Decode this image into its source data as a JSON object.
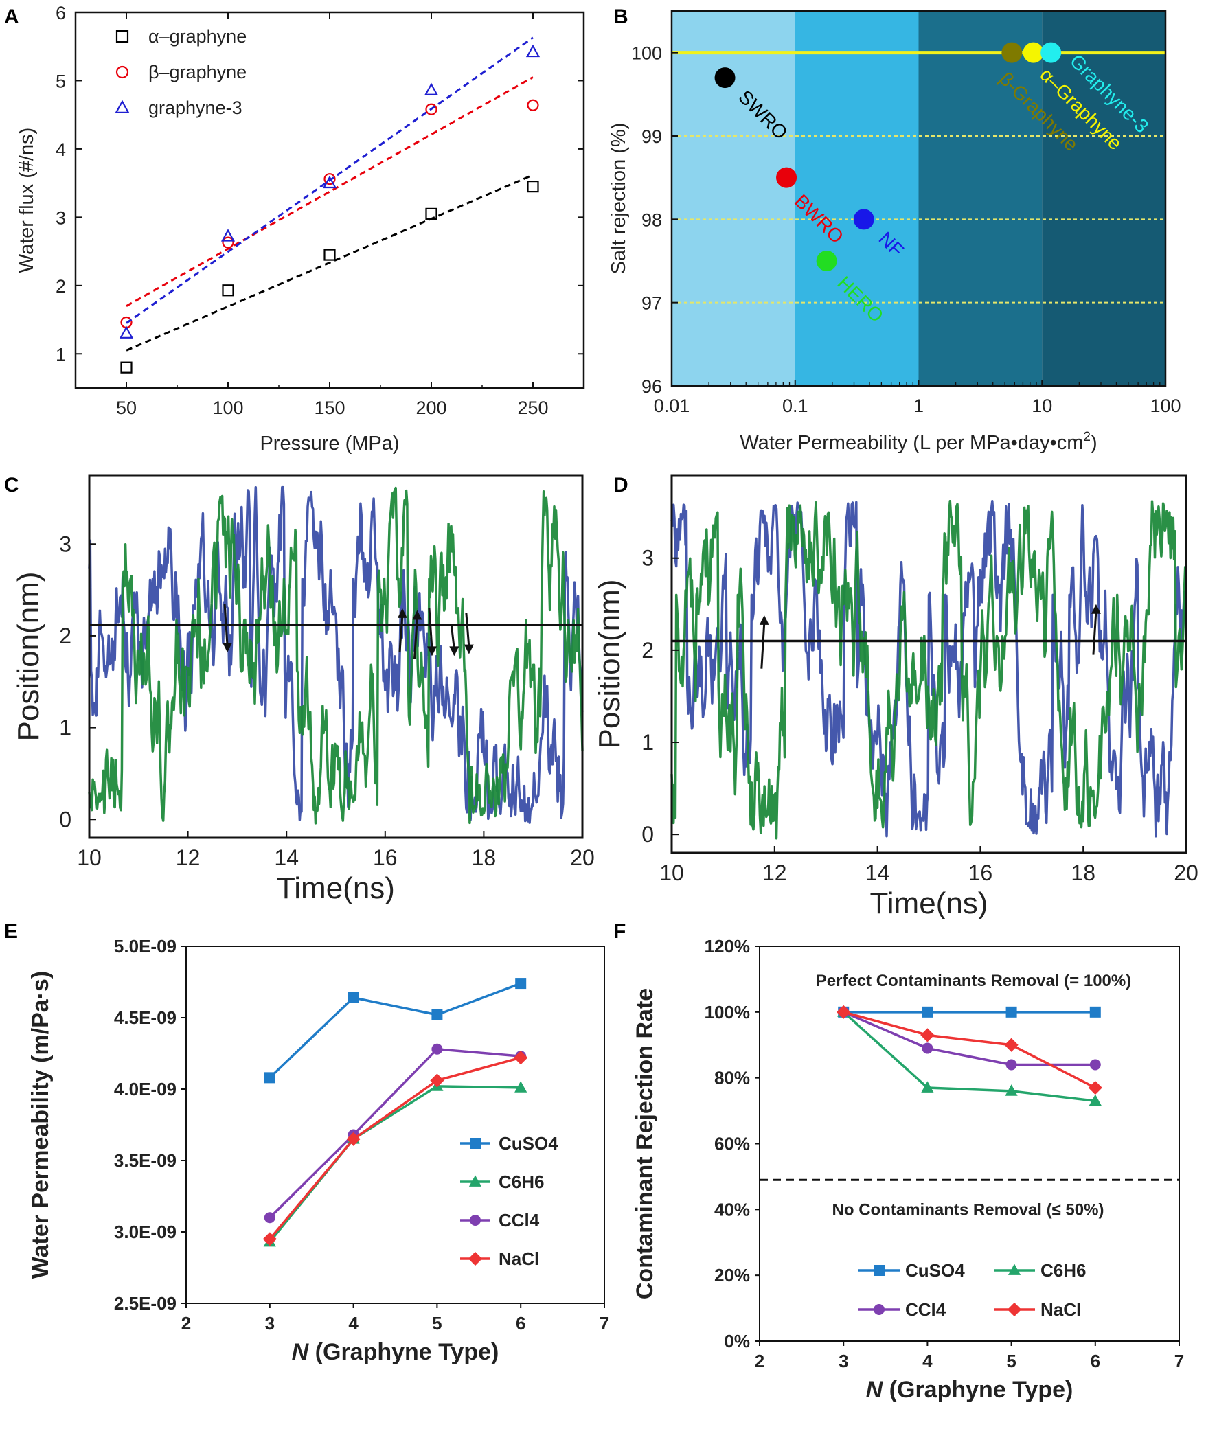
{
  "chart_data": [
    {
      "panel": "A",
      "type": "scatter",
      "xlabel": "Pressure (MPa)",
      "ylabel": "Water flux (#/ns)",
      "xlim": [
        25,
        275
      ],
      "ylim": [
        0.5,
        6
      ],
      "xticks": [
        50,
        100,
        150,
        200,
        250
      ],
      "yticks": [
        1,
        2,
        3,
        4,
        5,
        6
      ],
      "series": [
        {
          "name": "α–graphyne",
          "marker": "square",
          "color": "#000000",
          "x": [
            50,
            100,
            150,
            200,
            250
          ],
          "y": [
            0.8,
            1.93,
            2.45,
            3.05,
            3.45
          ],
          "fit": [
            1.05,
            3.62
          ]
        },
        {
          "name": "β–graphyne",
          "marker": "circle",
          "color": "#e8000b",
          "x": [
            50,
            100,
            150,
            200,
            250
          ],
          "y": [
            1.46,
            2.63,
            3.56,
            4.58,
            4.64
          ],
          "fit": [
            1.7,
            5.05
          ]
        },
        {
          "name": "graphyne-3",
          "marker": "triangle",
          "color": "#1f1fd1",
          "x": [
            50,
            100,
            150,
            200,
            250
          ],
          "y": [
            1.3,
            2.72,
            3.5,
            4.86,
            5.42
          ],
          "fit": [
            1.45,
            5.63
          ]
        }
      ]
    },
    {
      "panel": "B",
      "type": "scatter",
      "xscale": "log",
      "xlabel": "Water Permeability (L per MPa•day•cm",
      "xlabel_sup": "2",
      "xlabel_end": ")",
      "ylabel": "Salt rejection (%)",
      "xlim": [
        0.01,
        100
      ],
      "ylim": [
        96,
        100.5
      ],
      "xticks": [
        0.01,
        0.1,
        1,
        10,
        100
      ],
      "xtick_labels": [
        "0.01",
        "0.1",
        "1",
        "10",
        "100"
      ],
      "yticks": [
        96,
        97,
        98,
        99,
        100
      ],
      "points": [
        {
          "name": "SWRO",
          "x": 0.027,
          "y": 99.7,
          "color": "#000000"
        },
        {
          "name": "BWRO",
          "x": 0.085,
          "y": 98.5,
          "color": "#e8000b"
        },
        {
          "name": "NF",
          "x": 0.36,
          "y": 98.0,
          "color": "#1818e8"
        },
        {
          "name": "HERO",
          "x": 0.18,
          "y": 97.5,
          "color": "#22dd22"
        },
        {
          "name": "β-Graphyne",
          "x": 5.7,
          "y": 100.0,
          "color": "#7f7a00"
        },
        {
          "name": "α–Graphyne",
          "x": 8.5,
          "y": 100.0,
          "color": "#f5f500"
        },
        {
          "name": "Graphyne-3",
          "x": 11.8,
          "y": 100.0,
          "color": "#22eeee"
        }
      ],
      "reference_line": 100,
      "bands": [
        {
          "from": 0.01,
          "to": 0.1,
          "color": "#8dd4ee"
        },
        {
          "from": 0.1,
          "to": 1,
          "color": "#36b6e3"
        },
        {
          "from": 1,
          "to": 10,
          "color": "#1b6f8c"
        },
        {
          "from": 10,
          "to": 100,
          "color": "#155a73"
        }
      ]
    },
    {
      "panel": "C",
      "type": "line",
      "xlabel": "Time(ns)",
      "ylabel": "Position(nm)",
      "xlim": [
        10,
        20
      ],
      "ylim": [
        -0.2,
        3.75
      ],
      "xticks": [
        10,
        12,
        14,
        16,
        18,
        20
      ],
      "yticks": [
        0,
        1,
        2,
        3
      ],
      "membrane_y": 2.12,
      "series": [
        {
          "name": "blue trajectory",
          "color": "#3b4fa8"
        },
        {
          "name": "green trajectory",
          "color": "#1f8a3c"
        }
      ],
      "arrows": [
        {
          "x": 12.8,
          "y0": 2.35,
          "y1": 1.82
        },
        {
          "x": 16.35,
          "y0": 1.82,
          "y1": 2.3
        },
        {
          "x": 16.65,
          "y0": 1.75,
          "y1": 2.28
        },
        {
          "x": 16.95,
          "y0": 2.3,
          "y1": 1.78
        },
        {
          "x": 17.4,
          "y0": 2.12,
          "y1": 1.78
        },
        {
          "x": 17.7,
          "y0": 2.25,
          "y1": 1.8
        }
      ]
    },
    {
      "panel": "D",
      "type": "line",
      "xlabel": "Time(ns)",
      "ylabel": "Position(nm)",
      "xlim": [
        10,
        20
      ],
      "ylim": [
        -0.2,
        3.9
      ],
      "xticks": [
        10,
        12,
        14,
        16,
        18,
        20
      ],
      "yticks": [
        0,
        1,
        2,
        3
      ],
      "membrane_y": 2.1,
      "series": [
        {
          "name": "blue trajectory",
          "color": "#3b4fa8"
        },
        {
          "name": "green trajectory",
          "color": "#1f8a3c"
        }
      ],
      "arrows": [
        {
          "x": 11.8,
          "y0": 1.8,
          "y1": 2.38
        },
        {
          "x": 18.25,
          "y0": 1.95,
          "y1": 2.5
        }
      ]
    },
    {
      "panel": "E",
      "type": "line",
      "xlabel_italic": "N",
      "xlabel": " (Graphyne Type)",
      "ylabel": "Water Permeability (m/Pa·s)",
      "xlim": [
        2,
        7
      ],
      "ylim": [
        2.5,
        5.0
      ],
      "xticks": [
        2,
        3,
        4,
        5,
        6,
        7
      ],
      "yticks": [
        2.5,
        3.0,
        3.5,
        4.0,
        4.5,
        5.0
      ],
      "ytick_labels": [
        "2.5E-09",
        "3.0E-09",
        "3.5E-09",
        "4.0E-09",
        "4.5E-09",
        "5.0E-09"
      ],
      "series": [
        {
          "name": "CuSO4",
          "marker": "square",
          "color": "#1f7cc8",
          "x": [
            3,
            4,
            5,
            6
          ],
          "values": [
            4.08,
            4.64,
            4.52,
            4.74
          ]
        },
        {
          "name": "C6H6",
          "marker": "triangle",
          "color": "#24a56b",
          "x": [
            3,
            4,
            5,
            6
          ],
          "values": [
            2.93,
            3.65,
            4.02,
            4.01
          ]
        },
        {
          "name": "CCl4",
          "marker": "circle",
          "color": "#7e3fb0",
          "x": [
            3,
            4,
            5,
            6
          ],
          "values": [
            3.1,
            3.68,
            4.28,
            4.23
          ]
        },
        {
          "name": "NaCl",
          "marker": "diamond",
          "color": "#ee3434",
          "x": [
            3,
            4,
            5,
            6
          ],
          "values": [
            2.95,
            3.65,
            4.06,
            4.22
          ]
        }
      ]
    },
    {
      "panel": "F",
      "type": "line",
      "xlabel_italic": "N",
      "xlabel": " (Graphyne Type)",
      "ylabel": "Contaminant  Rejection Rate",
      "xlim": [
        2,
        7
      ],
      "ylim": [
        0,
        120
      ],
      "xticks": [
        2,
        3,
        4,
        5,
        6,
        7
      ],
      "yticks": [
        0,
        20,
        40,
        60,
        80,
        100,
        120
      ],
      "ytick_labels": [
        "0%",
        "20%",
        "40%",
        "60%",
        "80%",
        "100%",
        "120%"
      ],
      "annotations": {
        "top": "Perfect Contaminants Removal (= 100%)",
        "bottom": "No Contaminants Removal (≤ 50%)",
        "dashed_y": 49
      },
      "series": [
        {
          "name": "CuSO4",
          "marker": "square",
          "color": "#1f7cc8",
          "x": [
            3,
            4,
            5,
            6
          ],
          "values": [
            100,
            100,
            100,
            100
          ]
        },
        {
          "name": "C6H6",
          "marker": "triangle",
          "color": "#24a56b",
          "x": [
            3,
            4,
            5,
            6
          ],
          "values": [
            100,
            77,
            76,
            73
          ]
        },
        {
          "name": "CCl4",
          "marker": "circle",
          "color": "#7e3fb0",
          "x": [
            3,
            4,
            5,
            6
          ],
          "values": [
            100,
            89,
            84,
            84
          ]
        },
        {
          "name": "NaCl",
          "marker": "diamond",
          "color": "#ee3434",
          "x": [
            3,
            4,
            5,
            6
          ],
          "values": [
            100,
            93,
            90,
            77
          ]
        }
      ]
    }
  ]
}
